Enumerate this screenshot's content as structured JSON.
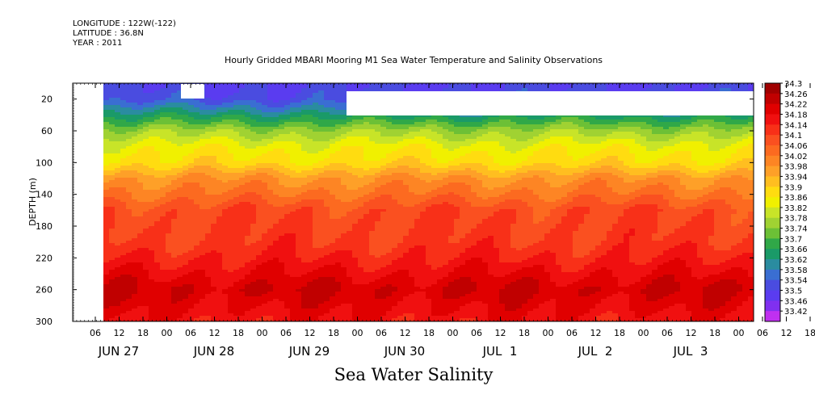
{
  "header": {
    "longitude": "LONGITUDE : 122W(-122)",
    "latitude": "LATITUDE : 36.8N",
    "year": "YEAR : 2011"
  },
  "title": "Hourly Gridded MBARI Mooring M1 Sea Water Temperature and Salinity Observations",
  "bottom_title": "Sea Water Salinity",
  "chart_data": {
    "type": "heatmap",
    "title": "Hourly Gridded MBARI Mooring M1 Sea Water Temperature and Salinity Observations",
    "variable": "Sea Water Salinity",
    "ylabel": "DEPTH (m)",
    "ylim": [
      300,
      0
    ],
    "yticks": [
      20,
      60,
      100,
      140,
      180,
      220,
      260,
      300
    ],
    "hour_tick_labels": [
      "06",
      "12",
      "18",
      "00",
      "06",
      "12",
      "18",
      "00",
      "06",
      "12",
      "18",
      "00",
      "06",
      "12",
      "18",
      "00",
      "06",
      "12",
      "18",
      "00",
      "06",
      "12",
      "18",
      "00",
      "06",
      "12",
      "18",
      "00",
      "06",
      "12",
      "18",
      "00"
    ],
    "date_labels": [
      "JUN 27",
      "JUN 28",
      "JUN 29",
      "JUN 30",
      "JUL  1",
      "JUL  2",
      "JUL  3"
    ],
    "colorbar": {
      "levels": [
        34.3,
        34.26,
        34.22,
        34.18,
        34.14,
        34.1,
        34.06,
        34.02,
        33.98,
        33.94,
        33.9,
        33.86,
        33.82,
        33.78,
        33.74,
        33.7,
        33.66,
        33.62,
        33.58,
        33.54,
        33.5,
        33.46,
        33.42
      ],
      "labels": [
        "34.3",
        "34.26",
        "34.22",
        "34.18",
        "34.14",
        "34.1",
        "34.06",
        "34.02",
        "33.98",
        "33.94",
        "33.9",
        "33.86",
        "33.82",
        "33.78",
        "33.74",
        "33.7",
        "33.66",
        "33.62",
        "33.58",
        "33.54",
        "33.5",
        "33.46",
        "33.42"
      ],
      "colors": [
        "#a00000",
        "#c00000",
        "#e00000",
        "#f01010",
        "#f83018",
        "#fa5020",
        "#fc6a20",
        "#fd8524",
        "#fea028",
        "#ffbe20",
        "#ffdc10",
        "#f0f000",
        "#c8e428",
        "#a0d232",
        "#6cc036",
        "#30a848",
        "#1a9a68",
        "#2a8ca0",
        "#3a6ed2",
        "#4a4ce0",
        "#5a3cf0",
        "#8030f0",
        "#c030f0"
      ]
    },
    "profile": [
      {
        "depth": 5,
        "value": 33.54
      },
      {
        "depth": 20,
        "value": 33.56
      },
      {
        "depth": 40,
        "value": 33.68
      },
      {
        "depth": 60,
        "value": 33.8
      },
      {
        "depth": 80,
        "value": 33.88
      },
      {
        "depth": 100,
        "value": 33.92
      },
      {
        "depth": 120,
        "value": 34.02
      },
      {
        "depth": 140,
        "value": 34.07
      },
      {
        "depth": 160,
        "value": 34.13
      },
      {
        "depth": 180,
        "value": 34.14
      },
      {
        "depth": 200,
        "value": 34.15
      },
      {
        "depth": 220,
        "value": 34.18
      },
      {
        "depth": 240,
        "value": 34.22
      },
      {
        "depth": 260,
        "value": 34.26
      },
      {
        "depth": 280,
        "value": 34.23
      },
      {
        "depth": 300,
        "value": 34.2
      }
    ]
  }
}
